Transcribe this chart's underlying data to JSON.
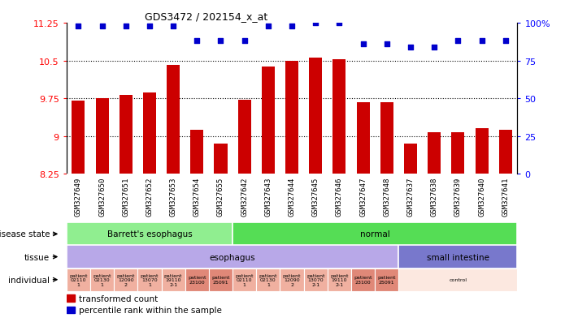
{
  "title": "GDS3472 / 202154_x_at",
  "samples": [
    "GSM327649",
    "GSM327650",
    "GSM327651",
    "GSM327652",
    "GSM327653",
    "GSM327654",
    "GSM327655",
    "GSM327642",
    "GSM327643",
    "GSM327644",
    "GSM327645",
    "GSM327646",
    "GSM327647",
    "GSM327648",
    "GSM327637",
    "GSM327638",
    "GSM327639",
    "GSM327640",
    "GSM327641"
  ],
  "bar_values": [
    9.7,
    9.75,
    9.82,
    9.87,
    10.42,
    9.12,
    8.85,
    9.72,
    10.38,
    10.5,
    10.55,
    10.52,
    9.67,
    9.67,
    8.85,
    9.08,
    9.08,
    9.15,
    9.12
  ],
  "percentile_values": [
    98,
    98,
    98,
    98,
    98,
    88,
    88,
    88,
    98,
    98,
    100,
    100,
    86,
    86,
    84,
    84,
    88,
    88,
    88
  ],
  "ylim": [
    8.25,
    11.25
  ],
  "y_ticks": [
    8.25,
    9.0,
    9.75,
    10.5,
    11.25
  ],
  "y_tick_labels": [
    "8.25",
    "9",
    "9.75",
    "10.5",
    "11.25"
  ],
  "right_y_ticks": [
    0,
    25,
    50,
    75,
    100
  ],
  "right_y_tick_labels": [
    "0",
    "25",
    "50",
    "75",
    "100%"
  ],
  "bar_color": "#cc0000",
  "percentile_color": "#0000cc",
  "bar_base": 8.25,
  "gridlines": [
    9.0,
    9.75,
    10.5
  ],
  "disease_state_groups": [
    {
      "label": "Barrett's esophagus",
      "start": 0,
      "end": 7,
      "color": "#90ee90"
    },
    {
      "label": "normal",
      "start": 7,
      "end": 19,
      "color": "#55dd55"
    }
  ],
  "tissue_groups": [
    {
      "label": "esophagus",
      "start": 0,
      "end": 14,
      "color": "#b8a8e8"
    },
    {
      "label": "small intestine",
      "start": 14,
      "end": 19,
      "color": "#7878cc"
    }
  ],
  "individual_groups": [
    {
      "label": "patient\n02110\n1",
      "start": 0,
      "end": 1,
      "color": "#f0b0a0"
    },
    {
      "label": "patient\n02130\n1",
      "start": 1,
      "end": 2,
      "color": "#f0b0a0"
    },
    {
      "label": "patient\n12090\n2",
      "start": 2,
      "end": 3,
      "color": "#f0b0a0"
    },
    {
      "label": "patient\n13070\n1",
      "start": 3,
      "end": 4,
      "color": "#f0b0a0"
    },
    {
      "label": "patient\n19110\n2-1",
      "start": 4,
      "end": 5,
      "color": "#f0b0a0"
    },
    {
      "label": "patient\n23100",
      "start": 5,
      "end": 6,
      "color": "#e08878"
    },
    {
      "label": "patient\n25091",
      "start": 6,
      "end": 7,
      "color": "#e08878"
    },
    {
      "label": "patient\n02110\n1",
      "start": 7,
      "end": 8,
      "color": "#f0b0a0"
    },
    {
      "label": "patient\n02130\n1",
      "start": 8,
      "end": 9,
      "color": "#f0b0a0"
    },
    {
      "label": "patient\n12090\n2",
      "start": 9,
      "end": 10,
      "color": "#f0b0a0"
    },
    {
      "label": "patient\n13070\n2-1",
      "start": 10,
      "end": 11,
      "color": "#f0b0a0"
    },
    {
      "label": "patient\n19110\n2-1",
      "start": 11,
      "end": 12,
      "color": "#f0b0a0"
    },
    {
      "label": "patient\n23100",
      "start": 12,
      "end": 13,
      "color": "#e08878"
    },
    {
      "label": "patient\n25091",
      "start": 13,
      "end": 14,
      "color": "#e08878"
    },
    {
      "label": "control",
      "start": 14,
      "end": 19,
      "color": "#fce8e0"
    }
  ],
  "tick_bg_color": "#d8d8d8",
  "background_color": "#ffffff"
}
